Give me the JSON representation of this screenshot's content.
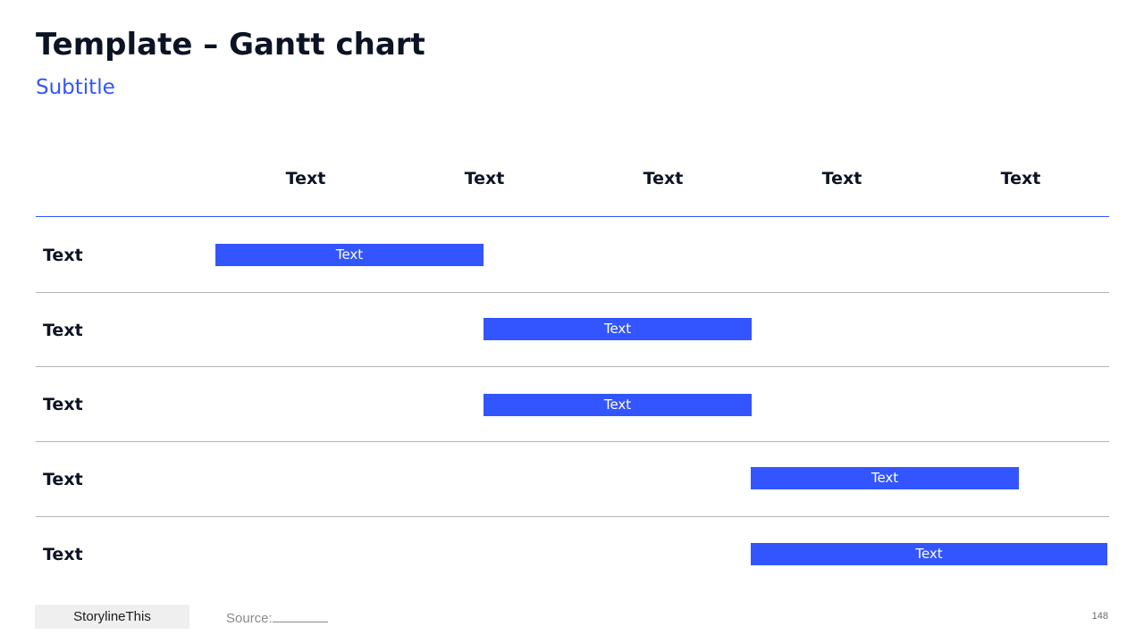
{
  "header": {
    "title": "Template – Gantt chart",
    "subtitle": "Subtitle"
  },
  "gantt": {
    "columns": [
      "Text",
      "Text",
      "Text",
      "Text",
      "Text"
    ],
    "rows": [
      {
        "label": "Text",
        "task": {
          "label": "Text",
          "start": 0,
          "end": 1.5
        }
      },
      {
        "label": "Text",
        "task": {
          "label": "Text",
          "start": 1.5,
          "end": 3
        }
      },
      {
        "label": "Text",
        "task": {
          "label": "Text",
          "start": 1.5,
          "end": 3
        }
      },
      {
        "label": "Text",
        "task": {
          "label": "Text",
          "start": 3,
          "end": 4.5
        }
      },
      {
        "label": "Text",
        "task": {
          "label": "Text",
          "start": 3,
          "end": 5
        }
      }
    ]
  },
  "footer": {
    "brand": "StorylineThis",
    "source_label": "Source:",
    "page_number": "148"
  },
  "colors": {
    "accent": "#3355ff",
    "text": "#0b1324"
  }
}
